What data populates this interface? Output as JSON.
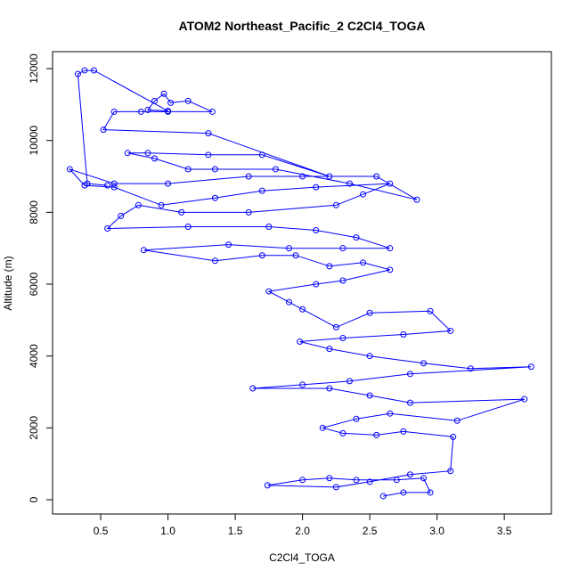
{
  "chart_data": {
    "type": "line",
    "title": "ATOM2 Northeast_Pacific_2 C2Cl4_TOGA",
    "xlabel": "C2Cl4_TOGA",
    "ylabel": "Altitude (m)",
    "color": "#0000ff",
    "markers": "open-circle",
    "xlim": [
      0.142,
      3.85
    ],
    "ylim": [
      -397,
      12472
    ],
    "xticks": [
      0.5,
      {
        "value": 1,
        "label": "1.0"
      },
      1.5,
      {
        "value": 2,
        "label": "2.0"
      },
      2.5,
      {
        "value": 3,
        "label": "3.0"
      },
      3.5
    ],
    "yticks": [
      0,
      2000,
      4000,
      6000,
      8000,
      10000,
      12000
    ],
    "x": [
      2.6,
      2.75,
      2.95,
      2.9,
      2.7,
      2.4,
      2.2,
      2.0,
      1.74,
      2.25,
      2.5,
      2.8,
      3.1,
      3.12,
      2.75,
      2.55,
      2.3,
      2.15,
      2.4,
      2.65,
      3.15,
      3.65,
      2.8,
      2.5,
      2.2,
      1.63,
      2.0,
      2.35,
      2.8,
      3.7,
      3.25,
      2.9,
      2.5,
      2.2,
      1.98,
      2.3,
      2.75,
      3.1,
      2.95,
      2.5,
      2.25,
      2.0,
      1.9,
      1.75,
      2.1,
      2.3,
      2.65,
      2.45,
      2.2,
      1.95,
      1.7,
      1.35,
      0.82,
      1.45,
      1.9,
      2.3,
      2.65,
      2.4,
      2.1,
      1.75,
      1.15,
      0.55,
      0.65,
      0.78,
      1.1,
      1.6,
      2.25,
      2.45,
      2.65,
      2.1,
      1.7,
      1.35,
      0.95,
      0.6,
      0.38,
      0.27,
      0.6,
      1.0,
      1.6,
      2.0,
      2.55,
      2.85,
      2.35,
      1.8,
      1.35,
      1.15,
      0.9,
      0.7,
      0.85,
      1.3,
      1.7,
      2.2,
      1.3,
      0.52,
      0.6,
      0.8,
      1.0,
      1.33,
      1.15,
      1.02,
      0.97,
      0.9,
      0.85,
      1.0,
      0.45,
      0.38,
      0.33,
      0.4,
      0.55
    ],
    "values": [
      100,
      200,
      200,
      600,
      550,
      550,
      600,
      550,
      400,
      350,
      500,
      700,
      800,
      1750,
      1900,
      1800,
      1850,
      2000,
      2250,
      2400,
      2200,
      2800,
      2700,
      2900,
      3100,
      3100,
      3200,
      3300,
      3500,
      3700,
      3650,
      3800,
      4000,
      4200,
      4400,
      4500,
      4600,
      4700,
      5250,
      5200,
      4800,
      5300,
      5500,
      5800,
      6000,
      6100,
      6400,
      6600,
      6500,
      6800,
      6800,
      6650,
      6950,
      7100,
      7000,
      7000,
      7000,
      7300,
      7500,
      7600,
      7600,
      7550,
      7900,
      8200,
      8000,
      8000,
      8200,
      8500,
      8800,
      8700,
      8600,
      8400,
      8200,
      8700,
      8750,
      9200,
      8800,
      8800,
      9000,
      9000,
      9000,
      8350,
      8800,
      9200,
      9200,
      9200,
      9500,
      9650,
      9650,
      9600,
      9600,
      9000,
      10200,
      10300,
      10800,
      10800,
      10800,
      10800,
      11100,
      11050,
      11300,
      11100,
      10850,
      10820,
      11950,
      11950,
      11850,
      8800,
      8750
    ]
  }
}
